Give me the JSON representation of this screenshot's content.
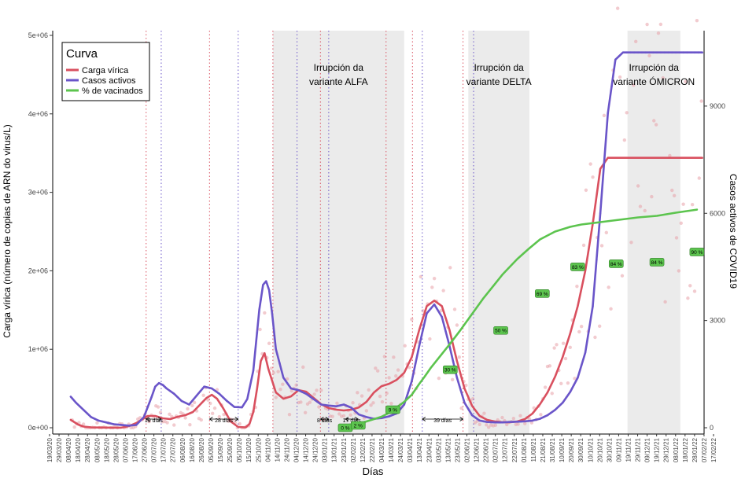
{
  "chart_data": {
    "type": "line",
    "title": "",
    "xlabel": "Días",
    "ylabel_left": "Carga vírica (número de copias de ARN do virus/L)",
    "ylabel_right": "Casos activos de COVID19",
    "ylim_left": [
      0,
      5000000
    ],
    "ylim_right": [
      0,
      11000
    ],
    "yticks_left": [
      {
        "value": 0,
        "label": "0e+00"
      },
      {
        "value": 1000000,
        "label": "1e+06"
      },
      {
        "value": 2000000,
        "label": "2e+06"
      },
      {
        "value": 3000000,
        "label": "3e+06"
      },
      {
        "value": 4000000,
        "label": "4e+06"
      },
      {
        "value": 5000000,
        "label": "5e+06"
      }
    ],
    "yticks_right": [
      {
        "value": 0,
        "label": "0"
      },
      {
        "value": 3000,
        "label": "3000"
      },
      {
        "value": 6000,
        "label": "6000"
      },
      {
        "value": 9000,
        "label": "9000"
      }
    ],
    "x_tick_labels": [
      "19/03/20",
      "29/03/20",
      "08/04/20",
      "18/04/20",
      "28/04/20",
      "08/05/20",
      "18/05/20",
      "28/05/20",
      "07/06/20",
      "17/06/20",
      "27/06/20",
      "07/07/20",
      "17/07/20",
      "27/07/20",
      "06/08/20",
      "16/08/20",
      "26/08/20",
      "05/09/20",
      "15/09/20",
      "25/09/20",
      "05/10/20",
      "15/10/20",
      "25/10/20",
      "04/11/20",
      "14/11/20",
      "24/11/20",
      "04/12/20",
      "14/12/20",
      "24/12/20",
      "03/01/21",
      "13/01/21",
      "23/01/21",
      "02/02/21",
      "12/02/21",
      "22/02/21",
      "04/03/21",
      "14/03/21",
      "24/03/21",
      "03/04/21",
      "13/04/21",
      "23/04/21",
      "03/05/21",
      "13/05/21",
      "23/05/21",
      "02/06/21",
      "12/06/21",
      "22/06/21",
      "02/07/21",
      "12/07/21",
      "22/07/21",
      "01/08/21",
      "11/08/21",
      "21/08/21",
      "31/08/21",
      "10/09/21",
      "20/09/21",
      "30/09/21",
      "10/10/21",
      "20/10/21",
      "30/10/21",
      "09/11/21",
      "19/11/21",
      "29/11/21",
      "09/12/21",
      "19/12/21",
      "29/12/21",
      "08/01/22",
      "18/01/22",
      "28/01/22",
      "07/02/22",
      "17/02/22"
    ],
    "legend": {
      "title": "Curva",
      "position": "top-left",
      "entries": [
        {
          "label": "Carga vírica",
          "color": "#d9505f"
        },
        {
          "label": "Casos activos",
          "color": "#6a55c9"
        },
        {
          "label": "% de vacinados",
          "color": "#5cc44e"
        }
      ]
    },
    "series": [
      {
        "name": "Carga vírica",
        "axis": "left",
        "color": "#d9505f",
        "x": [
          28,
          33,
          38,
          45,
          55,
          65,
          75,
          85,
          95,
          105,
          115,
          130,
          140,
          150,
          160,
          170,
          180,
          190,
          200,
          208,
          215,
          222,
          230,
          240,
          250,
          260,
          265,
          270,
          275,
          280,
          285,
          290,
          300,
          310,
          320,
          330,
          340,
          350,
          360,
          370,
          380,
          390,
          400,
          410,
          420,
          430,
          440,
          450,
          460,
          470,
          480,
          490,
          500,
          510,
          520,
          530,
          540,
          550,
          560,
          570,
          580,
          590,
          600,
          610,
          620,
          630,
          640,
          650,
          660,
          670,
          680,
          690,
          700,
          710,
          720,
          730,
          740,
          750,
          760,
          770,
          780,
          790,
          800,
          810,
          820,
          830,
          840,
          850,
          860,
          865
        ],
        "y": [
          100000,
          70000,
          40000,
          15000,
          5000,
          3000,
          2000,
          1000,
          1000,
          20000,
          60000,
          150000,
          150000,
          120000,
          110000,
          140000,
          160000,
          200000,
          300000,
          380000,
          420000,
          370000,
          250000,
          80000,
          10000,
          5000,
          50000,
          200000,
          500000,
          850000,
          950000,
          750000,
          450000,
          370000,
          400000,
          480000,
          460000,
          380000,
          300000,
          250000,
          230000,
          220000,
          230000,
          260000,
          330000,
          450000,
          530000,
          560000,
          610000,
          700000,
          900000,
          1250000,
          1550000,
          1620000,
          1550000,
          1250000,
          850000,
          500000,
          280000,
          150000,
          100000,
          80000,
          70000,
          70000,
          80000,
          110000,
          180000,
          300000,
          450000,
          650000,
          900000,
          1200000,
          1550000,
          2000000,
          2600000,
          3300000,
          3440000,
          3440000,
          3440000,
          3440000,
          3440000,
          3440000,
          3440000,
          3440000,
          3440000,
          3440000,
          3440000,
          3440000,
          3440000,
          3440000
        ]
      },
      {
        "name": "Casos activos",
        "axis": "right",
        "color": "#6a55c9",
        "x": [
          28,
          35,
          45,
          55,
          65,
          75,
          85,
          95,
          105,
          115,
          125,
          135,
          140,
          145,
          150,
          155,
          165,
          175,
          185,
          195,
          205,
          215,
          225,
          235,
          245,
          255,
          262,
          270,
          278,
          283,
          287,
          291,
          295,
          300,
          310,
          320,
          330,
          340,
          350,
          360,
          370,
          380,
          390,
          400,
          410,
          420,
          430,
          440,
          450,
          460,
          470,
          480,
          490,
          500,
          510,
          520,
          530,
          540,
          550,
          560,
          570,
          580,
          590,
          600,
          610,
          620,
          630,
          640,
          650,
          660,
          670,
          680,
          690,
          700,
          710,
          720,
          730,
          740,
          750,
          760,
          770,
          780,
          790,
          800,
          810,
          820,
          830,
          840,
          850,
          860,
          865
        ],
        "y": [
          870,
          700,
          500,
          300,
          200,
          150,
          100,
          80,
          60,
          80,
          300,
          850,
          1150,
          1250,
          1200,
          1100,
          950,
          750,
          650,
          900,
          1150,
          1100,
          950,
          750,
          580,
          570,
          800,
          1600,
          3300,
          4000,
          4100,
          3850,
          3200,
          2200,
          1400,
          1100,
          1050,
          950,
          800,
          650,
          620,
          600,
          650,
          560,
          370,
          300,
          250,
          270,
          320,
          400,
          650,
          1300,
          2300,
          3200,
          3450,
          3100,
          2300,
          1400,
          700,
          350,
          200,
          160,
          150,
          150,
          160,
          170,
          180,
          200,
          250,
          350,
          500,
          700,
          1000,
          1400,
          2100,
          3400,
          6000,
          8800,
          10300,
          10500,
          10500,
          10500,
          10500,
          10500,
          10500,
          10500,
          10500,
          10500,
          10500,
          10500,
          10500
        ]
      },
      {
        "name": "% de vacinados",
        "axis": "left",
        "color": "#5cc44e",
        "x": [
          388,
          392,
          398,
          410,
          420,
          430,
          440,
          450,
          460,
          470,
          480,
          490,
          497,
          505,
          515,
          530,
          545,
          560,
          575,
          590,
          600,
          610,
          620,
          635,
          650,
          670,
          690,
          705,
          730,
          755,
          780,
          805,
          830,
          858
        ],
        "y": [
          0,
          20000,
          40000,
          50000,
          80000,
          110000,
          140000,
          190000,
          260000,
          330000,
          420000,
          560000,
          650000,
          760000,
          880000,
          1060000,
          1250000,
          1450000,
          1650000,
          1830000,
          1950000,
          2050000,
          2150000,
          2280000,
          2400000,
          2500000,
          2560000,
          2590000,
          2620000,
          2650000,
          2680000,
          2700000,
          2740000,
          2780000
        ]
      }
    ],
    "vaccination_labels": [
      {
        "label": "0 %",
        "value": 0
      },
      {
        "label": "2 %",
        "value": 30000
      },
      {
        "label": "9 %",
        "value": 230000
      },
      {
        "label": "30 %",
        "value": 740000
      },
      {
        "label": "50 %",
        "value": 1240000
      },
      {
        "label": "69 %",
        "value": 1710000
      },
      {
        "label": "83 %",
        "value": 2050000
      },
      {
        "label": "84 %",
        "value": 2090000
      },
      {
        "label": "84 %",
        "value": 2110000
      },
      {
        "label": "90 %",
        "value": 2240000
      }
    ],
    "variant_periods": [
      {
        "label_line1": "Irrupción da",
        "label_line2": "variante ALFA"
      },
      {
        "label_line1": "Irrupción da",
        "label_line2": "variante DELTA"
      },
      {
        "label_line1": "Irrupción da",
        "label_line2": "variante ÓMICRON"
      }
    ],
    "lag_annotations": [
      {
        "label": "19 días"
      },
      {
        "label": "28 días"
      },
      {
        "label": "8 días"
      },
      {
        "label": "17 días"
      },
      {
        "label": "39 días"
      }
    ]
  }
}
